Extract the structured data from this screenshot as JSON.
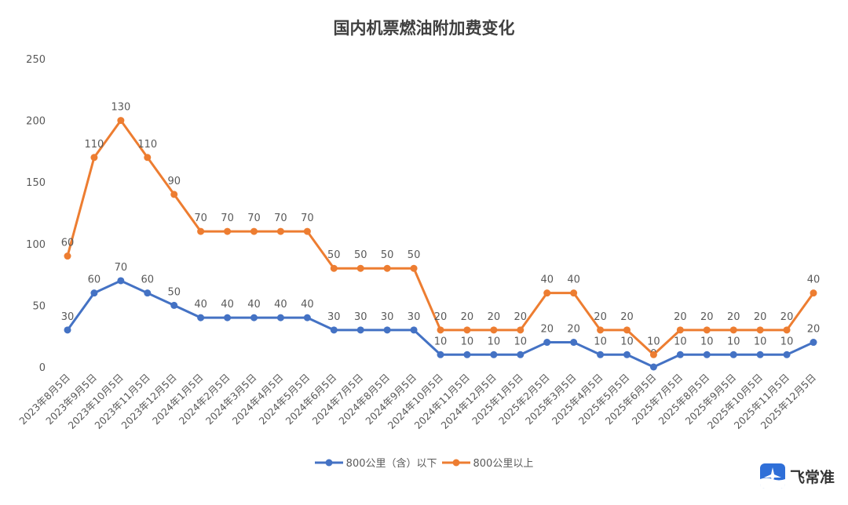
{
  "chart_data": {
    "type": "line",
    "stacked": true,
    "title": "国内机票燃油附加费变化",
    "categories": [
      "2023年8月5日",
      "2023年9月5日",
      "2023年10月5日",
      "2023年11月5日",
      "2023年12月5日",
      "2024年1月5日",
      "2024年2月5日",
      "2024年3月5日",
      "2024年4月5日",
      "2024年5月5日",
      "2024年6月5日",
      "2024年7月5日",
      "2024年8月5日",
      "2024年9月5日",
      "2024年10月5日",
      "2024年11月5日",
      "2024年12月5日",
      "2025年1月5日",
      "2025年2月5日",
      "2025年3月5日",
      "2025年4月5日",
      "2025年5月5日",
      "2025年6月5日",
      "2025年7月5日",
      "2025年8月5日",
      "2025年9月5日",
      "2025年10月5日",
      "2025年11月5日",
      "2025年12月5日"
    ],
    "series": [
      {
        "name": "800公里（含）以下",
        "color": "#4472C4",
        "values": [
          30,
          60,
          70,
          60,
          50,
          40,
          40,
          40,
          40,
          40,
          30,
          30,
          30,
          30,
          10,
          10,
          10,
          10,
          20,
          20,
          10,
          10,
          0,
          10,
          10,
          10,
          10,
          10,
          20
        ]
      },
      {
        "name": "800公里以上",
        "color": "#ED7D31",
        "values": [
          60,
          110,
          130,
          110,
          90,
          70,
          70,
          70,
          70,
          70,
          50,
          50,
          50,
          50,
          20,
          20,
          20,
          20,
          40,
          40,
          20,
          20,
          10,
          20,
          20,
          20,
          20,
          20,
          40
        ]
      }
    ],
    "ylim": [
      0,
      250
    ],
    "yticks": [
      "0",
      "50",
      "100",
      "150",
      "200",
      "250"
    ],
    "grid": false,
    "legend": "bottom"
  },
  "logo": {
    "text": "飞常准",
    "color": "#2F6FD8"
  }
}
